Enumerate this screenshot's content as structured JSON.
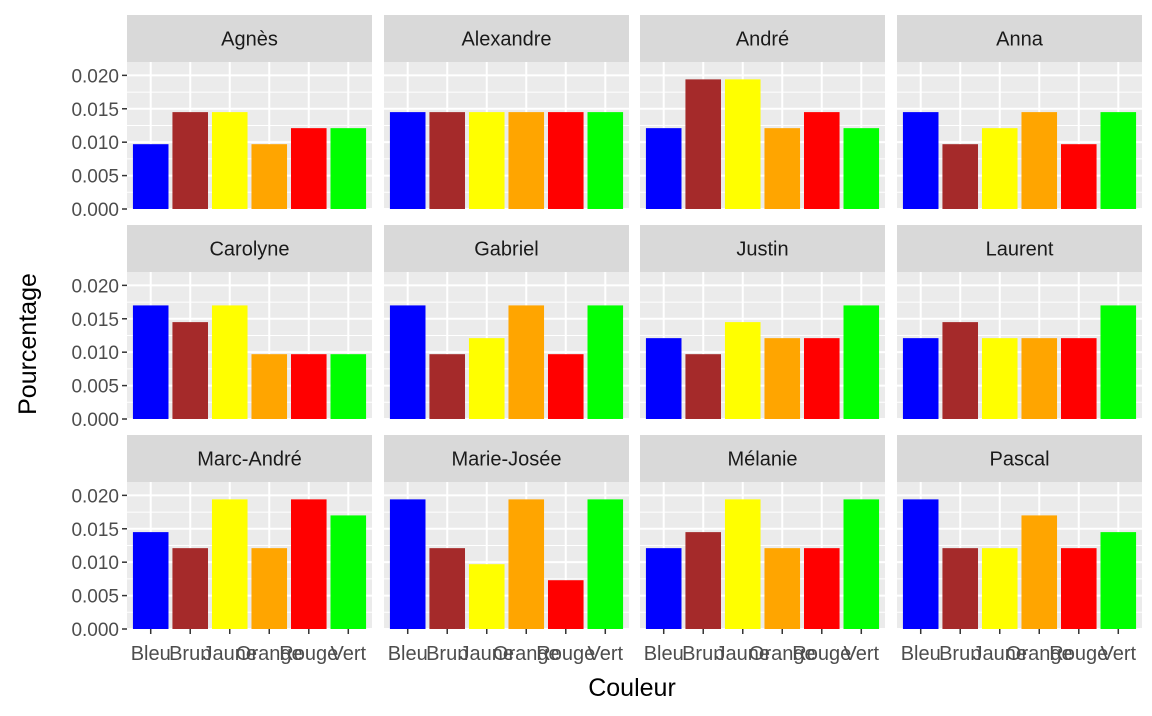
{
  "chart_data": {
    "type": "bar",
    "title": "",
    "xlabel": "Couleur",
    "ylabel": "Pourcentage",
    "ylim": [
      0,
      0.022
    ],
    "yticks": [
      "0.000",
      "0.005",
      "0.010",
      "0.015",
      "0.020"
    ],
    "grid": true,
    "legend": "none",
    "categories": [
      "Bleu",
      "Brun",
      "Jaune",
      "Orange",
      "Rouge",
      "Vert"
    ],
    "category_colors": [
      "#0000FF",
      "#A52A2A",
      "#FFFF00",
      "#FFA500",
      "#FF0000",
      "#00FF00"
    ],
    "panel_background": "#EBEBEB",
    "strip_background": "#D9D9D9",
    "panels": [
      {
        "name": "Agnès",
        "values": [
          0.0097,
          0.0145,
          0.0145,
          0.0097,
          0.0121,
          0.0121
        ]
      },
      {
        "name": "Alexandre",
        "values": [
          0.0145,
          0.0145,
          0.0145,
          0.0145,
          0.0145,
          0.0145
        ]
      },
      {
        "name": "André",
        "values": [
          0.0121,
          0.0194,
          0.0194,
          0.0121,
          0.0145,
          0.0121
        ]
      },
      {
        "name": "Anna",
        "values": [
          0.0145,
          0.0097,
          0.0121,
          0.0145,
          0.0097,
          0.0145
        ]
      },
      {
        "name": "Carolyne",
        "values": [
          0.017,
          0.0145,
          0.017,
          0.0097,
          0.0097,
          0.0097
        ]
      },
      {
        "name": "Gabriel",
        "values": [
          0.017,
          0.0097,
          0.0121,
          0.017,
          0.0097,
          0.017
        ]
      },
      {
        "name": "Justin",
        "values": [
          0.0121,
          0.0097,
          0.0145,
          0.0121,
          0.0121,
          0.017
        ]
      },
      {
        "name": "Laurent",
        "values": [
          0.0121,
          0.0145,
          0.0121,
          0.0121,
          0.0121,
          0.017
        ]
      },
      {
        "name": "Marc-André",
        "values": [
          0.0145,
          0.0121,
          0.0194,
          0.0121,
          0.0194,
          0.017
        ]
      },
      {
        "name": "Marie-Josée",
        "values": [
          0.0194,
          0.0121,
          0.0097,
          0.0194,
          0.0073,
          0.0194
        ]
      },
      {
        "name": "Mélanie",
        "values": [
          0.0121,
          0.0145,
          0.0194,
          0.0121,
          0.0121,
          0.0194
        ]
      },
      {
        "name": "Pascal",
        "values": [
          0.0194,
          0.0121,
          0.0121,
          0.017,
          0.0121,
          0.0145
        ]
      }
    ]
  }
}
